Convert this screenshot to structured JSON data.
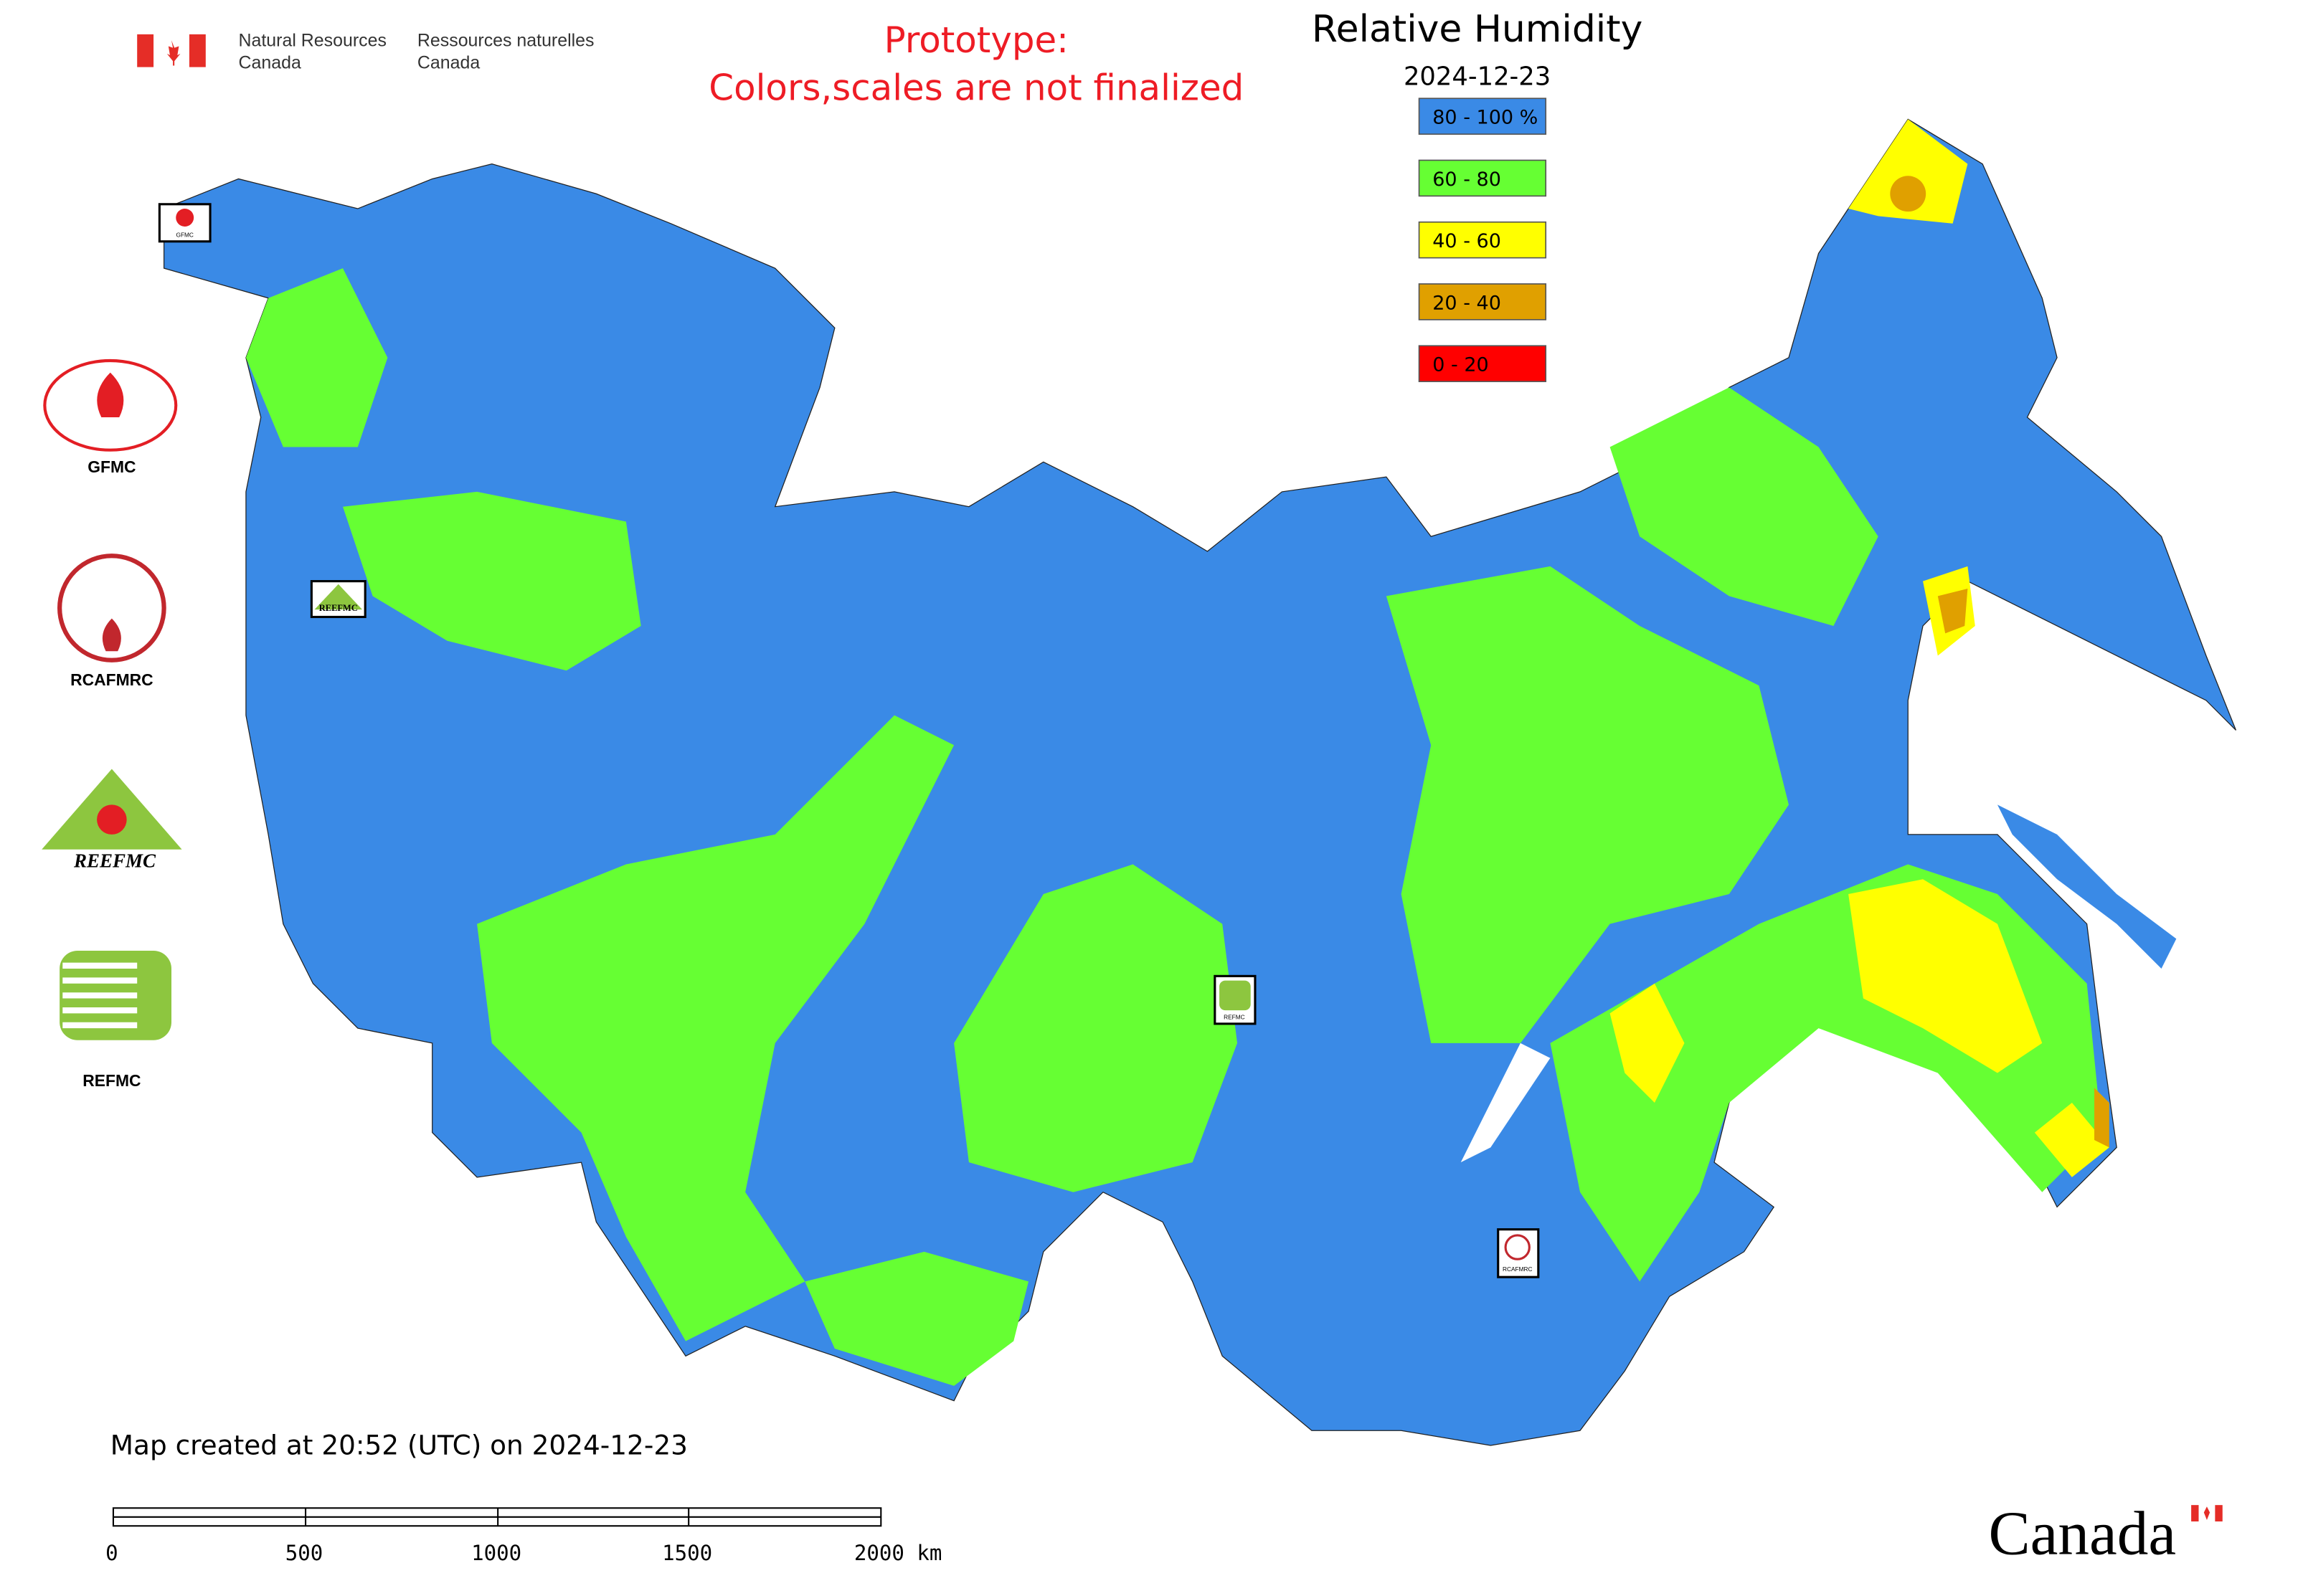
{
  "header": {
    "org_en_line1": "Natural Resources",
    "org_en_line2": "Canada",
    "org_fr_line1": "Ressources naturelles",
    "org_fr_line2": "Canada",
    "notice_line1": "Prototype:",
    "notice_line2": "Colors,scales are not finalized"
  },
  "legend": {
    "title": "Relative Humidity",
    "date": "2024-12-23",
    "items": [
      {
        "label": "80 - 100 %",
        "color": "#3a8ae6"
      },
      {
        "label": "60 - 80",
        "color": "#66ff33"
      },
      {
        "label": "40 - 60",
        "color": "#ffff00"
      },
      {
        "label": "20 - 40",
        "color": "#e0a000"
      },
      {
        "label": "0 - 20",
        "color": "#ff0000"
      }
    ]
  },
  "partners": [
    {
      "label": "GFMC"
    },
    {
      "label": "RCAFMRC"
    },
    {
      "label": "REEFMC"
    },
    {
      "label": "REFMC"
    }
  ],
  "map_markers": [
    {
      "label": "GFMC"
    },
    {
      "label": "REEFMC"
    },
    {
      "label": "REFMC"
    },
    {
      "label": "RCAFMRC"
    }
  ],
  "footer": {
    "created": "Map created at 20:52 (UTC) on 2024-12-23",
    "scale_labels": [
      "0",
      "500",
      "1000",
      "1500",
      "2000 km"
    ],
    "wordmark": "Canada"
  }
}
